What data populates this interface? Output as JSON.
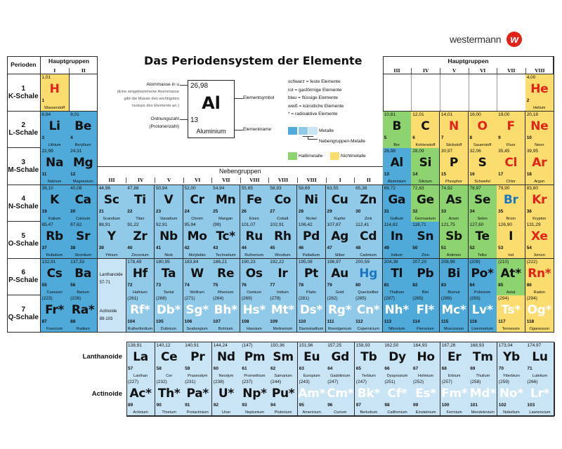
{
  "title": "Das Periodensystem der Elemente",
  "logo": {
    "text": "westermann",
    "letter": "w",
    "color": "#e2231a"
  },
  "headers": {
    "perioden": "Perioden",
    "hauptgruppen_left": "Hauptgruppen",
    "hauptgruppen_right": "Hauptgruppen",
    "nebengruppen": "Nebengruppen",
    "left_groups": [
      "I",
      "II"
    ],
    "right_groups": [
      "III",
      "IV",
      "V",
      "VI",
      "VII",
      "VIII"
    ],
    "sub_groups": [
      "III",
      "IV",
      "V",
      "VI",
      "VII",
      "VIII",
      "VIII",
      "VIII",
      "I",
      "II"
    ]
  },
  "periods": [
    {
      "n": "1",
      "shell": "K-Schale"
    },
    {
      "n": "2",
      "shell": "L-Schale"
    },
    {
      "n": "3",
      "shell": "M-Schale"
    },
    {
      "n": "4",
      "shell": "N-Schale"
    },
    {
      "n": "5",
      "shell": "O-Schale"
    },
    {
      "n": "6",
      "shell": "P-Schale"
    },
    {
      "n": "7",
      "shell": "Q-Schale"
    }
  ],
  "placeholders": [
    {
      "label": "Lanthanoide",
      "range": "57-71"
    },
    {
      "label": "Actinoide",
      "range": "89-103"
    }
  ],
  "series_labels": {
    "lanthanoide": "Lanthanoide",
    "actinoide": "Actinoide"
  },
  "legend": {
    "example": {
      "mass": "26,98",
      "symbol": "Al",
      "number": "13",
      "name": "Aluminium"
    },
    "mass_label": "Atommasse in u",
    "mass_note": [
      "(Eine eingeklammerte Atommasse",
      "gibt die Masse des wichtigsten",
      "Isotops des Elements an.)"
    ],
    "number_label": "Ordnungszahl",
    "number_note": "(Protonenzahl)",
    "symbol_label": "Elementsymbol",
    "name_label": "Elementname",
    "states": [
      "schwarz = feste Elemente",
      "rot = gasförmige Elemente",
      "blau = flüssige Elemente",
      "weiß = künstliche Elemente",
      "* = radioaktive Elemente"
    ],
    "metals": "Metalle",
    "transition_metals": "Nebengruppen-Metalle",
    "semimetals": "Halbmetalle",
    "nonmetals": "Nichtmetalle"
  },
  "colors": {
    "metal": "#4fa9d9",
    "transition": "#91c9e8",
    "fblock": "#c9e4f4",
    "semimetal": "#8dd36f",
    "nonmetal": "#fbdc6e",
    "solid": "#111111",
    "gas": "#e2231a",
    "liquid": "#1b78bf",
    "synthetic": "#ffffff"
  },
  "elements": [
    {
      "s": "H",
      "n": "Wasserstoff",
      "z": "1",
      "m": "1,01",
      "g": 1,
      "p": 1,
      "c": "nonmetal",
      "st": "gas"
    },
    {
      "s": "He",
      "n": "Helium",
      "z": "2",
      "m": "4,00",
      "g": 18,
      "p": 1,
      "c": "nonmetal",
      "st": "gas"
    },
    {
      "s": "Li",
      "n": "Lithium",
      "z": "3",
      "m": "6,94",
      "g": 1,
      "p": 2,
      "c": "metal",
      "st": "solid"
    },
    {
      "s": "Be",
      "n": "Beryllium",
      "z": "4",
      "m": "9,01",
      "g": 2,
      "p": 2,
      "c": "metal",
      "st": "solid"
    },
    {
      "s": "B",
      "n": "Bor",
      "z": "5",
      "m": "10,81",
      "g": 13,
      "p": 2,
      "c": "semimetal",
      "st": "solid"
    },
    {
      "s": "C",
      "n": "Kohlenstoff",
      "z": "6",
      "m": "12,01",
      "g": 14,
      "p": 2,
      "c": "nonmetal",
      "st": "solid"
    },
    {
      "s": "N",
      "n": "Stickstoff",
      "z": "7",
      "m": "14,01",
      "g": 15,
      "p": 2,
      "c": "nonmetal",
      "st": "gas"
    },
    {
      "s": "O",
      "n": "Sauerstoff",
      "z": "8",
      "m": "16,00",
      "g": 16,
      "p": 2,
      "c": "nonmetal",
      "st": "gas"
    },
    {
      "s": "F",
      "n": "Fluor",
      "z": "9",
      "m": "19,00",
      "g": 17,
      "p": 2,
      "c": "nonmetal",
      "st": "gas"
    },
    {
      "s": "Ne",
      "n": "Neon",
      "z": "10",
      "m": "20,18",
      "g": 18,
      "p": 2,
      "c": "nonmetal",
      "st": "gas"
    },
    {
      "s": "Na",
      "n": "Natrium",
      "z": "11",
      "m": "22,99",
      "g": 1,
      "p": 3,
      "c": "metal",
      "st": "solid"
    },
    {
      "s": "Mg",
      "n": "Magnesium",
      "z": "12",
      "m": "24,31",
      "g": 2,
      "p": 3,
      "c": "metal",
      "st": "solid"
    },
    {
      "s": "Al",
      "n": "Aluminium",
      "z": "13",
      "m": "26,98",
      "g": 13,
      "p": 3,
      "c": "metal",
      "st": "solid"
    },
    {
      "s": "Si",
      "n": "Silicium",
      "z": "14",
      "m": "28,09",
      "g": 14,
      "p": 3,
      "c": "semimetal",
      "st": "solid"
    },
    {
      "s": "P",
      "n": "Phosphor",
      "z": "15",
      "m": "30,97",
      "g": 15,
      "p": 3,
      "c": "nonmetal",
      "st": "solid"
    },
    {
      "s": "S",
      "n": "Schwefel",
      "z": "16",
      "m": "32,06",
      "g": 16,
      "p": 3,
      "c": "nonmetal",
      "st": "solid"
    },
    {
      "s": "Cl",
      "n": "Chlor",
      "z": "17",
      "m": "35,45",
      "g": 17,
      "p": 3,
      "c": "nonmetal",
      "st": "gas"
    },
    {
      "s": "Ar",
      "n": "Argon",
      "z": "18",
      "m": "39,95",
      "g": 18,
      "p": 3,
      "c": "nonmetal",
      "st": "gas"
    },
    {
      "s": "K",
      "n": "Kalium",
      "z": "19",
      "m": "39,10",
      "g": 1,
      "p": 4,
      "c": "metal",
      "st": "solid"
    },
    {
      "s": "Ca",
      "n": "Calcium",
      "z": "20",
      "m": "40,08",
      "g": 2,
      "p": 4,
      "c": "metal",
      "st": "solid"
    },
    {
      "s": "Sc",
      "n": "Scandium",
      "z": "21",
      "m": "44,96",
      "g": 3,
      "p": 4,
      "c": "transition",
      "st": "solid"
    },
    {
      "s": "Ti",
      "n": "Titan",
      "z": "22",
      "m": "47,88",
      "g": 4,
      "p": 4,
      "c": "transition",
      "st": "solid"
    },
    {
      "s": "V",
      "n": "Vanadium",
      "z": "23",
      "m": "50,94",
      "g": 5,
      "p": 4,
      "c": "transition",
      "st": "solid"
    },
    {
      "s": "Cr",
      "n": "Chrom",
      "z": "24",
      "m": "52,00",
      "g": 6,
      "p": 4,
      "c": "transition",
      "st": "solid"
    },
    {
      "s": "Mn",
      "n": "Mangan",
      "z": "25",
      "m": "54,94",
      "g": 7,
      "p": 4,
      "c": "transition",
      "st": "solid"
    },
    {
      "s": "Fe",
      "n": "Eisen",
      "z": "26",
      "m": "55,85",
      "g": 8,
      "p": 4,
      "c": "transition",
      "st": "solid"
    },
    {
      "s": "Co",
      "n": "Cobalt",
      "z": "27",
      "m": "58,93",
      "g": 9,
      "p": 4,
      "c": "transition",
      "st": "solid"
    },
    {
      "s": "Ni",
      "n": "Nickel",
      "z": "28",
      "m": "58,69",
      "g": 10,
      "p": 4,
      "c": "transition",
      "st": "solid"
    },
    {
      "s": "Cu",
      "n": "Kupfer",
      "z": "29",
      "m": "63,55",
      "g": 11,
      "p": 4,
      "c": "transition",
      "st": "solid"
    },
    {
      "s": "Zn",
      "n": "Zink",
      "z": "30",
      "m": "65,38",
      "g": 12,
      "p": 4,
      "c": "transition",
      "st": "solid"
    },
    {
      "s": "Ga",
      "n": "Gallium",
      "z": "31",
      "m": "69,72",
      "g": 13,
      "p": 4,
      "c": "metal",
      "st": "solid"
    },
    {
      "s": "Ge",
      "n": "Germanium",
      "z": "32",
      "m": "72,63",
      "g": 14,
      "p": 4,
      "c": "semimetal",
      "st": "solid"
    },
    {
      "s": "As",
      "n": "Arsen",
      "z": "33",
      "m": "74,92",
      "g": 15,
      "p": 4,
      "c": "semimetal",
      "st": "solid"
    },
    {
      "s": "Se",
      "n": "Selen",
      "z": "34",
      "m": "78,97",
      "g": 16,
      "p": 4,
      "c": "semimetal",
      "st": "solid"
    },
    {
      "s": "Br",
      "n": "Brom",
      "z": "35",
      "m": "79,90",
      "g": 17,
      "p": 4,
      "c": "nonmetal",
      "st": "liquid"
    },
    {
      "s": "Kr",
      "n": "Krypton",
      "z": "36",
      "m": "83,80",
      "g": 18,
      "p": 4,
      "c": "nonmetal",
      "st": "gas"
    },
    {
      "s": "Rb",
      "n": "Rubidium",
      "z": "37",
      "m": "85,47",
      "g": 1,
      "p": 5,
      "c": "metal",
      "st": "solid"
    },
    {
      "s": "Sr",
      "n": "Strontium",
      "z": "38",
      "m": "87,62",
      "g": 2,
      "p": 5,
      "c": "metal",
      "st": "solid"
    },
    {
      "s": "Y",
      "n": "Yttrium",
      "z": "39",
      "m": "88,91",
      "g": 3,
      "p": 5,
      "c": "transition",
      "st": "solid"
    },
    {
      "s": "Zr",
      "n": "Zirconium",
      "z": "40",
      "m": "91,22",
      "g": 4,
      "p": 5,
      "c": "transition",
      "st": "solid"
    },
    {
      "s": "Nb",
      "n": "Niob",
      "z": "41",
      "m": "92,91",
      "g": 5,
      "p": 5,
      "c": "transition",
      "st": "solid"
    },
    {
      "s": "Mo",
      "n": "Molybdän",
      "z": "42",
      "m": "95,94",
      "g": 6,
      "p": 5,
      "c": "transition",
      "st": "solid"
    },
    {
      "s": "Tc*",
      "n": "Technetium",
      "z": "43",
      "m": "(99)",
      "g": 7,
      "p": 5,
      "c": "transition",
      "st": "solid"
    },
    {
      "s": "Ru",
      "n": "Ruthenium",
      "z": "44",
      "m": "101,07",
      "g": 8,
      "p": 5,
      "c": "transition",
      "st": "solid"
    },
    {
      "s": "Rh",
      "n": "Rhodium",
      "z": "45",
      "m": "102,91",
      "g": 9,
      "p": 5,
      "c": "transition",
      "st": "solid"
    },
    {
      "s": "Pd",
      "n": "Palladium",
      "z": "46",
      "m": "106,42",
      "g": 10,
      "p": 5,
      "c": "transition",
      "st": "solid"
    },
    {
      "s": "Ag",
      "n": "Silber",
      "z": "47",
      "m": "107,87",
      "g": 11,
      "p": 5,
      "c": "transition",
      "st": "solid"
    },
    {
      "s": "Cd",
      "n": "Cadmium",
      "z": "48",
      "m": "112,41",
      "g": 12,
      "p": 5,
      "c": "transition",
      "st": "solid"
    },
    {
      "s": "In",
      "n": "Indium",
      "z": "49",
      "m": "114,82",
      "g": 13,
      "p": 5,
      "c": "metal",
      "st": "solid"
    },
    {
      "s": "Sn",
      "n": "Zinn",
      "z": "50",
      "m": "118,71",
      "g": 14,
      "p": 5,
      "c": "metal",
      "st": "solid"
    },
    {
      "s": "Sb",
      "n": "Antimon",
      "z": "51",
      "m": "121,75",
      "g": 15,
      "p": 5,
      "c": "semimetal",
      "st": "solid"
    },
    {
      "s": "Te",
      "n": "Tellur",
      "z": "52",
      "m": "127,60",
      "g": 16,
      "p": 5,
      "c": "semimetal",
      "st": "solid"
    },
    {
      "s": "I",
      "n": "Iod",
      "z": "53",
      "m": "126,90",
      "g": 17,
      "p": 5,
      "c": "nonmetal",
      "st": "solid"
    },
    {
      "s": "Xe",
      "n": "Xenon",
      "z": "54",
      "m": "131,29",
      "g": 18,
      "p": 5,
      "c": "nonmetal",
      "st": "gas"
    },
    {
      "s": "Cs",
      "n": "Caesium",
      "z": "55",
      "m": "132,91",
      "g": 1,
      "p": 6,
      "c": "metal",
      "st": "solid"
    },
    {
      "s": "Ba",
      "n": "Barium",
      "z": "56",
      "m": "137,33",
      "g": 2,
      "p": 6,
      "c": "metal",
      "st": "solid"
    },
    {
      "s": "Hf",
      "n": "Hafnium",
      "z": "72",
      "m": "178,49",
      "g": 4,
      "p": 6,
      "c": "transition",
      "st": "solid"
    },
    {
      "s": "Ta",
      "n": "Tantal",
      "z": "73",
      "m": "180,95",
      "g": 5,
      "p": 6,
      "c": "transition",
      "st": "solid"
    },
    {
      "s": "W",
      "n": "Wolfram",
      "z": "74",
      "m": "183,84",
      "g": 6,
      "p": 6,
      "c": "transition",
      "st": "solid"
    },
    {
      "s": "Re",
      "n": "Rhenium",
      "z": "75",
      "m": "186,21",
      "g": 7,
      "p": 6,
      "c": "transition",
      "st": "solid"
    },
    {
      "s": "Os",
      "n": "Osmium",
      "z": "76",
      "m": "190,23",
      "g": 8,
      "p": 6,
      "c": "transition",
      "st": "solid"
    },
    {
      "s": "Ir",
      "n": "Iridium",
      "z": "77",
      "m": "192,22",
      "g": 9,
      "p": 6,
      "c": "transition",
      "st": "solid"
    },
    {
      "s": "Pt",
      "n": "Platin",
      "z": "78",
      "m": "195,08",
      "g": 10,
      "p": 6,
      "c": "transition",
      "st": "solid"
    },
    {
      "s": "Au",
      "n": "Gold",
      "z": "79",
      "m": "196,97",
      "g": 11,
      "p": 6,
      "c": "transition",
      "st": "solid"
    },
    {
      "s": "Hg",
      "n": "Quecksilber",
      "z": "80",
      "m": "200,59",
      "g": 12,
      "p": 6,
      "c": "transition",
      "st": "liquid"
    },
    {
      "s": "Tl",
      "n": "Thallium",
      "z": "81",
      "m": "204,38",
      "g": 13,
      "p": 6,
      "c": "metal",
      "st": "solid"
    },
    {
      "s": "Pb",
      "n": "Blei",
      "z": "82",
      "m": "207,20",
      "g": 14,
      "p": 6,
      "c": "metal",
      "st": "solid"
    },
    {
      "s": "Bi",
      "n": "Bismut",
      "z": "83",
      "m": "208,98",
      "g": 15,
      "p": 6,
      "c": "metal",
      "st": "solid"
    },
    {
      "s": "Po*",
      "n": "Polonium",
      "z": "84",
      "m": "(209)",
      "g": 16,
      "p": 6,
      "c": "metal",
      "st": "solid"
    },
    {
      "s": "At*",
      "n": "Astat",
      "z": "85",
      "m": "(210)",
      "g": 17,
      "p": 6,
      "c": "semimetal",
      "st": "solid"
    },
    {
      "s": "Rn*",
      "n": "Radon",
      "z": "86",
      "m": "(222)",
      "g": 18,
      "p": 6,
      "c": "nonmetal",
      "st": "gas"
    },
    {
      "s": "Fr*",
      "n": "Francium",
      "z": "87",
      "m": "(223)",
      "g": 1,
      "p": 7,
      "c": "metal",
      "st": "solid"
    },
    {
      "s": "Ra*",
      "n": "Radium",
      "z": "88",
      "m": "(226)",
      "g": 2,
      "p": 7,
      "c": "metal",
      "st": "solid"
    },
    {
      "s": "Rf*",
      "n": "Rutherfordium",
      "z": "104",
      "m": "(261)",
      "g": 4,
      "p": 7,
      "c": "transition",
      "st": "synthetic"
    },
    {
      "s": "Db*",
      "n": "Dubnium",
      "z": "105",
      "m": "(268)",
      "g": 5,
      "p": 7,
      "c": "transition",
      "st": "synthetic"
    },
    {
      "s": "Sg*",
      "n": "Seaborgium",
      "z": "106",
      "m": "(271)",
      "g": 6,
      "p": 7,
      "c": "transition",
      "st": "synthetic"
    },
    {
      "s": "Bh*",
      "n": "Bohrium",
      "z": "107",
      "m": "(264)",
      "g": 7,
      "p": 7,
      "c": "transition",
      "st": "synthetic"
    },
    {
      "s": "Hs*",
      "n": "Hassium",
      "z": "108",
      "m": "(269)",
      "g": 8,
      "p": 7,
      "c": "transition",
      "st": "synthetic"
    },
    {
      "s": "Mt*",
      "n": "Meitnerium",
      "z": "109",
      "m": "(278)",
      "g": 9,
      "p": 7,
      "c": "transition",
      "st": "synthetic"
    },
    {
      "s": "Ds*",
      "n": "Darmstadtium",
      "z": "110",
      "m": "(281)",
      "g": 10,
      "p": 7,
      "c": "transition",
      "st": "synthetic"
    },
    {
      "s": "Rg*",
      "n": "Roentgenium",
      "z": "111",
      "m": "(282)",
      "g": 11,
      "p": 7,
      "c": "transition",
      "st": "synthetic"
    },
    {
      "s": "Cn*",
      "n": "Copernicium",
      "z": "112",
      "m": "(285)",
      "g": 12,
      "p": 7,
      "c": "transition",
      "st": "synthetic"
    },
    {
      "s": "Nh*",
      "n": "Nihonium",
      "z": "113",
      "m": "(287)",
      "g": 13,
      "p": 7,
      "c": "metal",
      "st": "synthetic"
    },
    {
      "s": "Fl*",
      "n": "Flerovium",
      "z": "114",
      "m": "(285)",
      "g": 14,
      "p": 7,
      "c": "metal",
      "st": "synthetic"
    },
    {
      "s": "Mc*",
      "n": "Moscovium",
      "z": "115",
      "m": "(289)",
      "g": 15,
      "p": 7,
      "c": "metal",
      "st": "synthetic"
    },
    {
      "s": "Lv*",
      "n": "Livermorium",
      "z": "116",
      "m": "(293)",
      "g": 16,
      "p": 7,
      "c": "metal",
      "st": "synthetic"
    },
    {
      "s": "Ts*",
      "n": "Tennessin",
      "z": "117",
      "m": "(294)",
      "g": 17,
      "p": 7,
      "c": "nonmetal",
      "st": "synthetic"
    },
    {
      "s": "Og*",
      "n": "Oganesson",
      "z": "118",
      "m": "(294)",
      "g": 18,
      "p": 7,
      "c": "nonmetal",
      "st": "synthetic"
    }
  ],
  "lanthanoids": [
    {
      "s": "La",
      "n": "Lanthan",
      "z": "57",
      "m": "138,91",
      "st": "solid"
    },
    {
      "s": "Ce",
      "n": "Cer",
      "z": "58",
      "m": "140,12",
      "st": "solid"
    },
    {
      "s": "Pr",
      "n": "Praseodym",
      "z": "59",
      "m": "140,91",
      "st": "solid"
    },
    {
      "s": "Nd",
      "n": "Neodym",
      "z": "60",
      "m": "144,24",
      "st": "solid"
    },
    {
      "s": "Pm",
      "n": "Promethium",
      "z": "61",
      "m": "(147)",
      "st": "solid"
    },
    {
      "s": "Sm",
      "n": "Samarium",
      "z": "62",
      "m": "150,36",
      "st": "solid"
    },
    {
      "s": "Eu",
      "n": "Europium",
      "z": "63",
      "m": "151,96",
      "st": "solid"
    },
    {
      "s": "Gd",
      "n": "Gadolinium",
      "z": "64",
      "m": "157,25",
      "st": "solid"
    },
    {
      "s": "Tb",
      "n": "Terbium",
      "z": "65",
      "m": "158,93",
      "st": "solid"
    },
    {
      "s": "Dy",
      "n": "Dysprosium",
      "z": "66",
      "m": "162,50",
      "st": "solid"
    },
    {
      "s": "Ho",
      "n": "Holmium",
      "z": "67",
      "m": "164,93",
      "st": "solid"
    },
    {
      "s": "Er",
      "n": "Erbium",
      "z": "68",
      "m": "167,26",
      "st": "solid"
    },
    {
      "s": "Tm",
      "n": "Thulium",
      "z": "69",
      "m": "168,93",
      "st": "solid"
    },
    {
      "s": "Yb",
      "n": "Ytterbium",
      "z": "70",
      "m": "173,04",
      "st": "solid"
    },
    {
      "s": "Lu",
      "n": "Lutetium",
      "z": "71",
      "m": "174.97",
      "st": "solid"
    }
  ],
  "actinoids": [
    {
      "s": "Ac*",
      "n": "Actinium",
      "z": "89",
      "m": "(227)",
      "st": "solid"
    },
    {
      "s": "Th*",
      "n": "Thorium",
      "z": "90",
      "m": "(232)",
      "st": "solid"
    },
    {
      "s": "Pa*",
      "n": "Protactinium",
      "z": "91",
      "m": "(231)",
      "st": "solid"
    },
    {
      "s": "U*",
      "n": "Uran",
      "z": "92",
      "m": "(238)",
      "st": "solid"
    },
    {
      "s": "Np*",
      "n": "Neptunium",
      "z": "93",
      "m": "(237)",
      "st": "solid"
    },
    {
      "s": "Pu*",
      "n": "Plutonium",
      "z": "94",
      "m": "(244)",
      "st": "solid"
    },
    {
      "s": "Am*",
      "n": "Americium",
      "z": "95",
      "m": "(243)",
      "st": "synthetic"
    },
    {
      "s": "Cm*",
      "n": "Curium",
      "z": "96",
      "m": "(247)",
      "st": "synthetic"
    },
    {
      "s": "Bk*",
      "n": "Berkelium",
      "z": "97",
      "m": "(247)",
      "st": "synthetic"
    },
    {
      "s": "Cf*",
      "n": "Californium",
      "z": "98",
      "m": "(251)",
      "st": "synthetic"
    },
    {
      "s": "Es*",
      "n": "Einsteinium",
      "z": "99",
      "m": "(252)",
      "st": "synthetic"
    },
    {
      "s": "Fm*",
      "n": "Fermium",
      "z": "100",
      "m": "(257)",
      "st": "synthetic"
    },
    {
      "s": "Md*",
      "n": "Mendelevium",
      "z": "101",
      "m": "(258)",
      "st": "synthetic"
    },
    {
      "s": "No*",
      "n": "Nobelium",
      "z": "102",
      "m": "(259)",
      "st": "synthetic"
    },
    {
      "s": "Lr*",
      "n": "Lawrencium",
      "z": "103",
      "m": "(266)",
      "st": "synthetic"
    }
  ]
}
